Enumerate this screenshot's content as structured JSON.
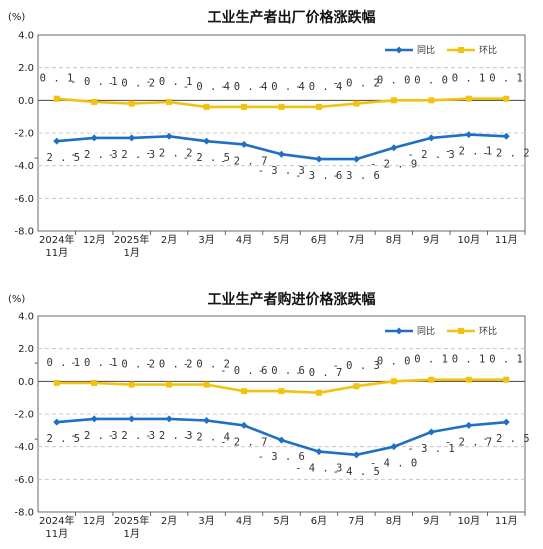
{
  "chart_data": [
    {
      "type": "line",
      "title": "工业生产者出厂价格涨跌幅",
      "unit": "(%)",
      "ylim": [
        -8.0,
        4.0
      ],
      "yticks": [
        "4.0",
        "2.0",
        "0.0",
        "-2.0",
        "-4.0",
        "-6.0",
        "-8.0"
      ],
      "grid": true,
      "legend_position": "top-right",
      "categories": [
        [
          "2024年",
          "11月"
        ],
        [
          "12月"
        ],
        [
          "2025年",
          "1月"
        ],
        [
          "2月"
        ],
        [
          "3月"
        ],
        [
          "4月"
        ],
        [
          "5月"
        ],
        [
          "6月"
        ],
        [
          "7月"
        ],
        [
          "8月"
        ],
        [
          "9月"
        ],
        [
          "10月"
        ],
        [
          "11月"
        ]
      ],
      "series": [
        {
          "name": "同比",
          "color": "#1f6fc5",
          "values": [
            -2.5,
            -2.3,
            -2.3,
            -2.2,
            -2.5,
            -2.7,
            -3.3,
            -3.6,
            -3.6,
            -2.9,
            -2.3,
            -2.1,
            -2.2
          ],
          "labels": [
            "-2.5",
            "-2.3",
            "-2.3",
            "-2.2",
            "-2.5",
            "-2.7",
            "-3.3",
            "-3.6",
            "-3.6",
            "-2.9",
            "-2.3",
            "-2.1",
            "-2.2"
          ]
        },
        {
          "name": "环比",
          "color": "#f2c211",
          "values": [
            0.1,
            -0.1,
            -0.2,
            -0.1,
            -0.4,
            -0.4,
            -0.4,
            -0.4,
            -0.2,
            0.0,
            0.0,
            0.1,
            0.1
          ],
          "labels": [
            "0.1",
            "-0.1",
            "-0.2",
            "-0.1",
            "-0.4",
            "-0.4",
            "-0.4",
            "-0.4",
            "-0.2",
            "0.0",
            "0.0",
            "0.1",
            "0.1"
          ]
        }
      ]
    },
    {
      "type": "line",
      "title": "工业生产者购进价格涨跌幅",
      "unit": "(%)",
      "ylim": [
        -8.0,
        4.0
      ],
      "yticks": [
        "4.0",
        "2.0",
        "0.0",
        "-2.0",
        "-4.0",
        "-6.0",
        "-8.0"
      ],
      "grid": true,
      "legend_position": "top-right",
      "categories": [
        [
          "2024年",
          "11月"
        ],
        [
          "12月"
        ],
        [
          "2025年",
          "1月"
        ],
        [
          "2月"
        ],
        [
          "3月"
        ],
        [
          "4月"
        ],
        [
          "5月"
        ],
        [
          "6月"
        ],
        [
          "7月"
        ],
        [
          "8月"
        ],
        [
          "9月"
        ],
        [
          "10月"
        ],
        [
          "11月"
        ]
      ],
      "series": [
        {
          "name": "同比",
          "color": "#1f6fc5",
          "values": [
            -2.5,
            -2.3,
            -2.3,
            -2.3,
            -2.4,
            -2.7,
            -3.6,
            -4.3,
            -4.5,
            -4.0,
            -3.1,
            -2.7,
            -2.5
          ],
          "labels": [
            "-2.5",
            "-2.3",
            "-2.3",
            "-2.3",
            "-2.4",
            "-2.7",
            "-3.6",
            "-4.3",
            "-4.5",
            "-4.0",
            "-3.1",
            "-2.7",
            "-2.5"
          ]
        },
        {
          "name": "环比",
          "color": "#f2c211",
          "values": [
            -0.1,
            -0.1,
            -0.2,
            -0.2,
            -0.2,
            -0.6,
            -0.6,
            -0.7,
            -0.3,
            0.0,
            0.1,
            0.1,
            0.1
          ],
          "labels": [
            "-0.1",
            "-0.1",
            "-0.2",
            "-0.2",
            "-0.2",
            "-0.6",
            "-0.6",
            "-0.7",
            "-0.3",
            "0.0",
            "0.1",
            "0.1",
            "0.1"
          ]
        }
      ]
    }
  ]
}
